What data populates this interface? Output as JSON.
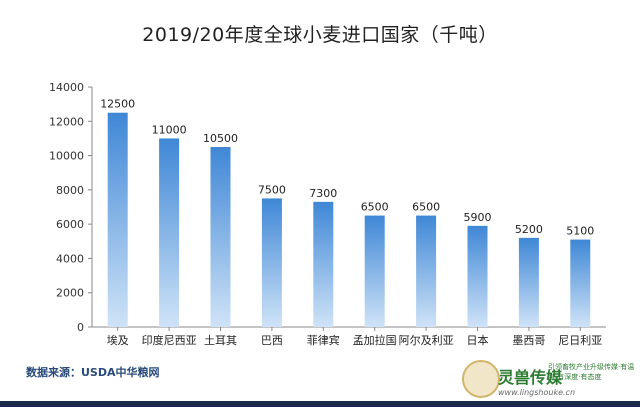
{
  "chart_data": {
    "type": "bar",
    "title": "2019/20年度全球小麦进口国家（千吨）",
    "categories": [
      "埃及",
      "印度尼西亚",
      "土耳其",
      "巴西",
      "菲律宾",
      "孟加拉国",
      "阿尔及利亚",
      "日本",
      "墨西哥",
      "尼日利亚"
    ],
    "values": [
      12500,
      11000,
      10500,
      7500,
      7300,
      6500,
      6500,
      5900,
      5200,
      5100
    ],
    "value_labels": [
      "12500",
      "11000",
      "10500",
      "7500",
      "7300",
      "6500",
      "6500",
      "5900",
      "5200",
      "5100"
    ],
    "y_ticks": [
      0,
      2000,
      4000,
      6000,
      8000,
      10000,
      12000,
      14000
    ],
    "y_tick_labels": [
      "0",
      "2000",
      "4000",
      "6000",
      "8000",
      "10000",
      "12000",
      "14000"
    ],
    "ylim": [
      0,
      14000
    ],
    "grid": false,
    "bar_color_top": "#3f87d6",
    "bar_color_bottom": "#cfe3f7"
  },
  "source": "数据来源：USDA中华粮网",
  "brand": {
    "name": "灵兽传媒",
    "tagline": "引领畜牧产业升级传媒·有温度·有深度·有态度",
    "url": "www.lingshouke.cn"
  }
}
